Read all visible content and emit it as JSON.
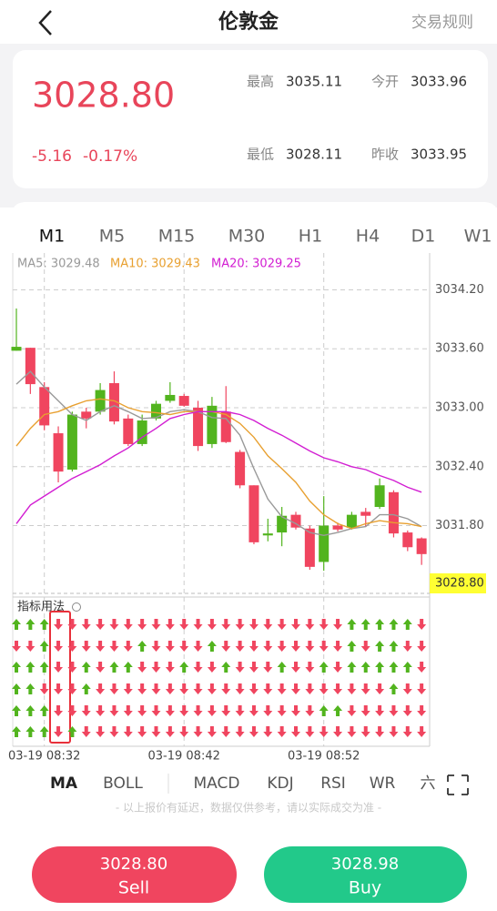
{
  "header": {
    "title": "伦敦金",
    "rules": "交易规则"
  },
  "quote": {
    "price": "3028.80",
    "change": "-5.16",
    "change_pct": "-0.17%",
    "stats": [
      {
        "label": "最高",
        "value": "3035.11"
      },
      {
        "label": "今开",
        "value": "3033.96"
      },
      {
        "label": "最低",
        "value": "3028.11"
      },
      {
        "label": "昨收",
        "value": "3033.95"
      }
    ]
  },
  "timeframes": [
    "M1",
    "M5",
    "M15",
    "M30",
    "H1",
    "H4",
    "D1",
    "W1"
  ],
  "chart_data": {
    "type": "candlestick",
    "up_color": "#52b41e",
    "down_color": "#f0455f",
    "categories": [
      null,
      null,
      "03-19 08:32",
      null,
      null,
      null,
      null,
      null,
      null,
      null,
      null,
      null,
      "03-19 08:42",
      null,
      null,
      null,
      null,
      null,
      null,
      null,
      null,
      null,
      "03-19 08:52",
      null,
      null,
      null,
      null,
      null,
      null,
      null
    ],
    "open": [
      3033.58,
      3033.61,
      3033.21,
      3032.74,
      3032.37,
      3032.96,
      3032.96,
      3033.25,
      3032.89,
      3032.63,
      3032.89,
      3033.07,
      3033.12,
      3033.0,
      3032.63,
      3032.96,
      3032.55,
      3032.21,
      3031.7,
      3031.73,
      3031.91,
      3031.77,
      3031.43,
      3031.8,
      3031.78,
      3031.94,
      3031.99,
      3032.14,
      3031.73,
      3031.67
    ],
    "high": [
      3034.01,
      3033.61,
      3033.26,
      3032.81,
      3032.96,
      3033.0,
      3033.25,
      3033.37,
      3032.93,
      3032.93,
      3033.07,
      3033.26,
      3033.14,
      3033.07,
      3033.11,
      3033.22,
      3032.57,
      3032.21,
      3031.87,
      3031.99,
      3031.94,
      3031.8,
      3032.1,
      3031.83,
      3031.94,
      3031.98,
      3032.28,
      3032.16,
      3031.75,
      3031.68
    ],
    "low": [
      3033.58,
      3033.14,
      3032.77,
      3032.24,
      3032.35,
      3032.79,
      3032.93,
      3032.83,
      3032.61,
      3032.61,
      3032.87,
      3033.05,
      3033.01,
      3032.56,
      3032.59,
      3032.64,
      3032.18,
      3031.61,
      3031.64,
      3031.59,
      3031.76,
      3031.35,
      3031.34,
      3031.74,
      3031.76,
      3031.79,
      3031.97,
      3031.68,
      3031.54,
      3031.4
    ],
    "close": [
      3033.62,
      3033.24,
      3032.82,
      3032.35,
      3032.93,
      3032.89,
      3033.18,
      3032.86,
      3032.63,
      3032.87,
      3033.04,
      3033.13,
      3033.02,
      3032.61,
      3033.02,
      3032.65,
      3032.21,
      3031.63,
      3031.72,
      3031.9,
      3031.78,
      3031.38,
      3031.8,
      3031.76,
      3031.91,
      3031.9,
      3032.21,
      3031.72,
      3031.58,
      3031.51
    ],
    "series": [
      {
        "name": "MA5: 3029.48",
        "color": "#999999",
        "values": [
          3033.24,
          3033.37,
          3033.21,
          3033.07,
          3032.93,
          3032.87,
          3032.96,
          3033.02,
          3032.96,
          3032.89,
          3032.9,
          3032.96,
          3032.98,
          3032.96,
          3032.9,
          3032.89,
          3032.72,
          3032.38,
          3032.07,
          3031.89,
          3031.82,
          3031.73,
          3031.7,
          3031.73,
          3031.77,
          3031.79,
          3031.91,
          3031.91,
          3031.87,
          3031.79
        ]
      },
      {
        "name": "MA10: 3029.43",
        "color": "#e8a030",
        "values": [
          3032.61,
          3032.79,
          3032.93,
          3032.96,
          3033.02,
          3033.07,
          3033.09,
          3033.07,
          3033.0,
          3032.96,
          3032.95,
          3032.93,
          3032.96,
          3032.96,
          3032.96,
          3032.93,
          3032.84,
          3032.7,
          3032.51,
          3032.38,
          3032.24,
          3032.05,
          3031.91,
          3031.82,
          3031.77,
          3031.82,
          3031.85,
          3031.83,
          3031.82,
          3031.79
        ]
      },
      {
        "name": "MA20: 3029.25",
        "color": "#d21ed2",
        "values": [
          3031.82,
          3032.01,
          3032.1,
          3032.19,
          3032.28,
          3032.35,
          3032.42,
          3032.51,
          3032.59,
          3032.7,
          3032.79,
          3032.89,
          3032.93,
          3032.96,
          3032.96,
          3032.96,
          3032.93,
          3032.87,
          3032.79,
          3032.72,
          3032.64,
          3032.56,
          3032.49,
          3032.45,
          3032.4,
          3032.37,
          3032.31,
          3032.26,
          3032.19,
          3032.14
        ]
      }
    ],
    "ylim": [
      3031.11,
      3034.51
    ],
    "yticks": [
      {
        "value": 3034.2,
        "label": "3034.20"
      },
      {
        "value": 3033.6,
        "label": "3033.60"
      },
      {
        "value": 3033.0,
        "label": "3033.00"
      },
      {
        "value": 3032.4,
        "label": "3032.40"
      },
      {
        "value": 3031.8,
        "label": "3031.80"
      }
    ],
    "grid": true,
    "current_price_label": "3028.80",
    "signal_title": "指标用法",
    "signals": [
      [
        1,
        1,
        1,
        -1,
        -1,
        -1,
        -1,
        -1,
        -1,
        -1,
        -1,
        -1,
        -1,
        -1,
        -1,
        -1,
        -1,
        -1,
        -1,
        -1,
        -1,
        -1,
        -1,
        -1,
        1,
        1,
        1,
        1,
        1,
        -1
      ],
      [
        -1,
        -1,
        1,
        -1,
        -1,
        -1,
        -1,
        -1,
        -1,
        1,
        -1,
        -1,
        -1,
        -1,
        1,
        -1,
        -1,
        -1,
        -1,
        -1,
        -1,
        -1,
        -1,
        -1,
        1,
        -1,
        1,
        1,
        -1,
        -1
      ],
      [
        1,
        1,
        1,
        -1,
        -1,
        1,
        -1,
        1,
        1,
        -1,
        -1,
        -1,
        1,
        -1,
        -1,
        1,
        -1,
        -1,
        -1,
        1,
        -1,
        -1,
        1,
        -1,
        1,
        1,
        1,
        1,
        1,
        -1
      ],
      [
        1,
        1,
        -1,
        -1,
        -1,
        1,
        -1,
        -1,
        -1,
        -1,
        -1,
        -1,
        -1,
        -1,
        -1,
        -1,
        -1,
        -1,
        -1,
        -1,
        -1,
        -1,
        -1,
        -1,
        -1,
        -1,
        -1,
        1,
        -1,
        -1
      ],
      [
        1,
        1,
        1,
        -1,
        -1,
        -1,
        -1,
        -1,
        -1,
        -1,
        -1,
        -1,
        -1,
        -1,
        -1,
        -1,
        -1,
        -1,
        -1,
        -1,
        -1,
        -1,
        1,
        1,
        -1,
        -1,
        -1,
        -1,
        -1,
        -1
      ],
      [
        1,
        1,
        1,
        -1,
        1,
        -1,
        -1,
        -1,
        -1,
        -1,
        -1,
        -1,
        -1,
        -1,
        -1,
        -1,
        -1,
        -1,
        -1,
        -1,
        -1,
        -1,
        -1,
        -1,
        -1,
        -1,
        -1,
        -1,
        -1,
        -1
      ]
    ]
  },
  "indicators": [
    "MA",
    "BOLL",
    "MACD",
    "KDJ",
    "RSI",
    "WR",
    "六"
  ],
  "disclaimer": "- 以上报价有延迟，数据仅供参考，请以实际成交为准 -",
  "buttons": [
    {
      "price": "3028.80",
      "label": "Sell"
    },
    {
      "price": "3028.98",
      "label": "Buy"
    }
  ]
}
